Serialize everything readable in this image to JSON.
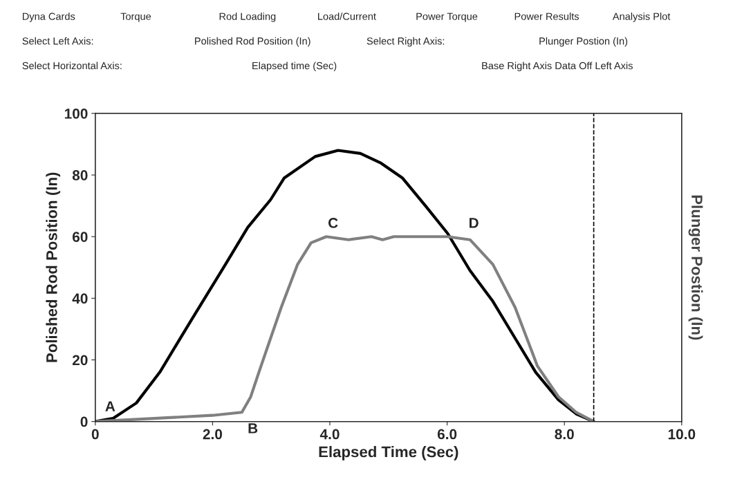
{
  "chart_data": {
    "type": "line",
    "xlabel": "Elapsed Time (Sec)",
    "ylabel": "Polished Rod Position (In)",
    "y2label": "Plunger Postion (In)",
    "xlim": [
      0,
      10
    ],
    "xticks": [
      0,
      {
        "value": 2,
        "label": "2.0"
      },
      {
        "value": 4,
        "label": "4.0"
      },
      {
        "value": 6,
        "label": "6.0"
      },
      {
        "value": 8,
        "label": "8.0"
      },
      {
        "value": 10,
        "label": "10.0"
      }
    ],
    "ylim": [
      0,
      100
    ],
    "yticks": [
      0,
      20,
      40,
      60,
      80,
      100
    ],
    "grid": false,
    "marker": "none",
    "line_style": "solid",
    "series": [
      {
        "color": "#000000",
        "x": [
          0,
          0.3,
          0.7,
          1.1,
          1.64,
          2.22,
          2.6,
          2.99,
          3.22,
          3.75,
          4.14,
          4.52,
          4.86,
          5.24,
          5.63,
          6.01,
          6.39,
          6.78,
          7.16,
          7.51,
          7.9,
          8.2,
          8.5
        ],
        "values": [
          0,
          1,
          6,
          16,
          33,
          51,
          63,
          72,
          79,
          86,
          88,
          87,
          84,
          79,
          70,
          61,
          49,
          39,
          27,
          16,
          7,
          2.5,
          0
        ]
      },
      {
        "color": "#808080",
        "x": [
          0,
          1,
          2,
          2.5,
          2.65,
          2.79,
          3.17,
          3.45,
          3.68,
          3.94,
          4.32,
          4.71,
          4.9,
          5.09,
          6.01,
          6.39,
          6.78,
          7.16,
          7.54,
          7.9,
          8.2,
          8.5
        ],
        "values": [
          0,
          1,
          2,
          3,
          8,
          16,
          37,
          51,
          58,
          60,
          59,
          60,
          59,
          60,
          60,
          59,
          51,
          37,
          18,
          8,
          3,
          0
        ]
      }
    ],
    "ref_lines": [
      {
        "axis": "x",
        "value": 8.5,
        "color": "#000000",
        "line_style": "dashed"
      }
    ],
    "annotations": [
      {
        "text": "A",
        "x": 0.1,
        "y": 0.5
      },
      {
        "text": "B",
        "x": 2.5,
        "y": 3
      },
      {
        "text": "C",
        "x": 3.9,
        "y": 60
      },
      {
        "text": "D",
        "x": 6.3,
        "y": 60
      },
      "Dyna Cards",
      "Torque",
      "Rod Loading",
      "Load/Current",
      "Power Torque",
      "Power Results",
      "Analysis Plot",
      "Select Left Axis:",
      "Polished Rod Position (In)",
      "Select Right Axis:",
      "Plunger Postion (In)",
      "Select Horizontal Axis:",
      "Elapsed time (Sec)",
      "Base Right Axis Data Off Left Axis"
    ]
  }
}
